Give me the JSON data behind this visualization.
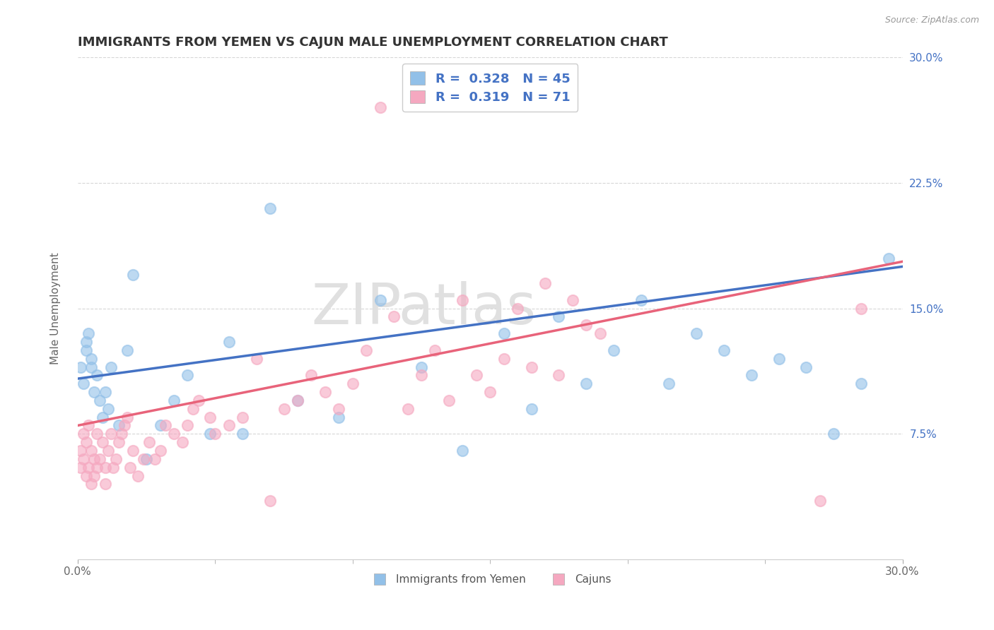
{
  "title": "IMMIGRANTS FROM YEMEN VS CAJUN MALE UNEMPLOYMENT CORRELATION CHART",
  "source": "Source: ZipAtlas.com",
  "watermark": "ZIPatlas",
  "ylabel": "Male Unemployment",
  "xlim": [
    0.0,
    0.3
  ],
  "ylim": [
    0.0,
    0.3
  ],
  "ytick_labels": [
    "7.5%",
    "15.0%",
    "22.5%",
    "30.0%"
  ],
  "ytick_positions": [
    0.075,
    0.15,
    0.225,
    0.3
  ],
  "blue_color": "#92C0E8",
  "pink_color": "#F5A8C0",
  "blue_line_color": "#4472C4",
  "pink_line_color": "#E8637A",
  "legend_text_color": "#4472C4",
  "blue_R": 0.328,
  "blue_N": 45,
  "pink_R": 0.319,
  "pink_N": 71,
  "blue_scatter_x": [
    0.001,
    0.002,
    0.003,
    0.003,
    0.004,
    0.005,
    0.005,
    0.006,
    0.007,
    0.008,
    0.009,
    0.01,
    0.011,
    0.012,
    0.015,
    0.018,
    0.02,
    0.025,
    0.03,
    0.035,
    0.04,
    0.048,
    0.055,
    0.06,
    0.07,
    0.08,
    0.095,
    0.11,
    0.125,
    0.14,
    0.155,
    0.165,
    0.175,
    0.185,
    0.195,
    0.205,
    0.215,
    0.225,
    0.235,
    0.245,
    0.255,
    0.265,
    0.275,
    0.285,
    0.295
  ],
  "blue_scatter_y": [
    0.115,
    0.105,
    0.13,
    0.125,
    0.135,
    0.115,
    0.12,
    0.1,
    0.11,
    0.095,
    0.085,
    0.1,
    0.09,
    0.115,
    0.08,
    0.125,
    0.17,
    0.06,
    0.08,
    0.095,
    0.11,
    0.075,
    0.13,
    0.075,
    0.21,
    0.095,
    0.085,
    0.155,
    0.115,
    0.065,
    0.135,
    0.09,
    0.145,
    0.105,
    0.125,
    0.155,
    0.105,
    0.135,
    0.125,
    0.11,
    0.12,
    0.115,
    0.075,
    0.105,
    0.18
  ],
  "pink_scatter_x": [
    0.001,
    0.001,
    0.002,
    0.002,
    0.003,
    0.003,
    0.004,
    0.004,
    0.005,
    0.005,
    0.006,
    0.006,
    0.007,
    0.007,
    0.008,
    0.009,
    0.01,
    0.01,
    0.011,
    0.012,
    0.013,
    0.014,
    0.015,
    0.016,
    0.017,
    0.018,
    0.019,
    0.02,
    0.022,
    0.024,
    0.026,
    0.028,
    0.03,
    0.032,
    0.035,
    0.038,
    0.04,
    0.042,
    0.044,
    0.048,
    0.05,
    0.055,
    0.06,
    0.065,
    0.07,
    0.075,
    0.08,
    0.085,
    0.09,
    0.095,
    0.1,
    0.105,
    0.11,
    0.115,
    0.12,
    0.125,
    0.13,
    0.135,
    0.14,
    0.145,
    0.15,
    0.155,
    0.16,
    0.165,
    0.17,
    0.175,
    0.18,
    0.185,
    0.19,
    0.27,
    0.285
  ],
  "pink_scatter_y": [
    0.065,
    0.055,
    0.06,
    0.075,
    0.05,
    0.07,
    0.055,
    0.08,
    0.045,
    0.065,
    0.05,
    0.06,
    0.055,
    0.075,
    0.06,
    0.07,
    0.045,
    0.055,
    0.065,
    0.075,
    0.055,
    0.06,
    0.07,
    0.075,
    0.08,
    0.085,
    0.055,
    0.065,
    0.05,
    0.06,
    0.07,
    0.06,
    0.065,
    0.08,
    0.075,
    0.07,
    0.08,
    0.09,
    0.095,
    0.085,
    0.075,
    0.08,
    0.085,
    0.12,
    0.035,
    0.09,
    0.095,
    0.11,
    0.1,
    0.09,
    0.105,
    0.125,
    0.27,
    0.145,
    0.09,
    0.11,
    0.125,
    0.095,
    0.155,
    0.11,
    0.1,
    0.12,
    0.15,
    0.115,
    0.165,
    0.11,
    0.155,
    0.14,
    0.135,
    0.035,
    0.15
  ],
  "blue_trend_y_start": 0.108,
  "blue_trend_y_end": 0.175,
  "pink_trend_y_start": 0.08,
  "pink_trend_y_end": 0.178,
  "background_color": "#FFFFFF",
  "grid_color": "#CCCCCC",
  "title_fontsize": 13,
  "label_fontsize": 11,
  "tick_fontsize": 11,
  "legend_fontsize": 13
}
